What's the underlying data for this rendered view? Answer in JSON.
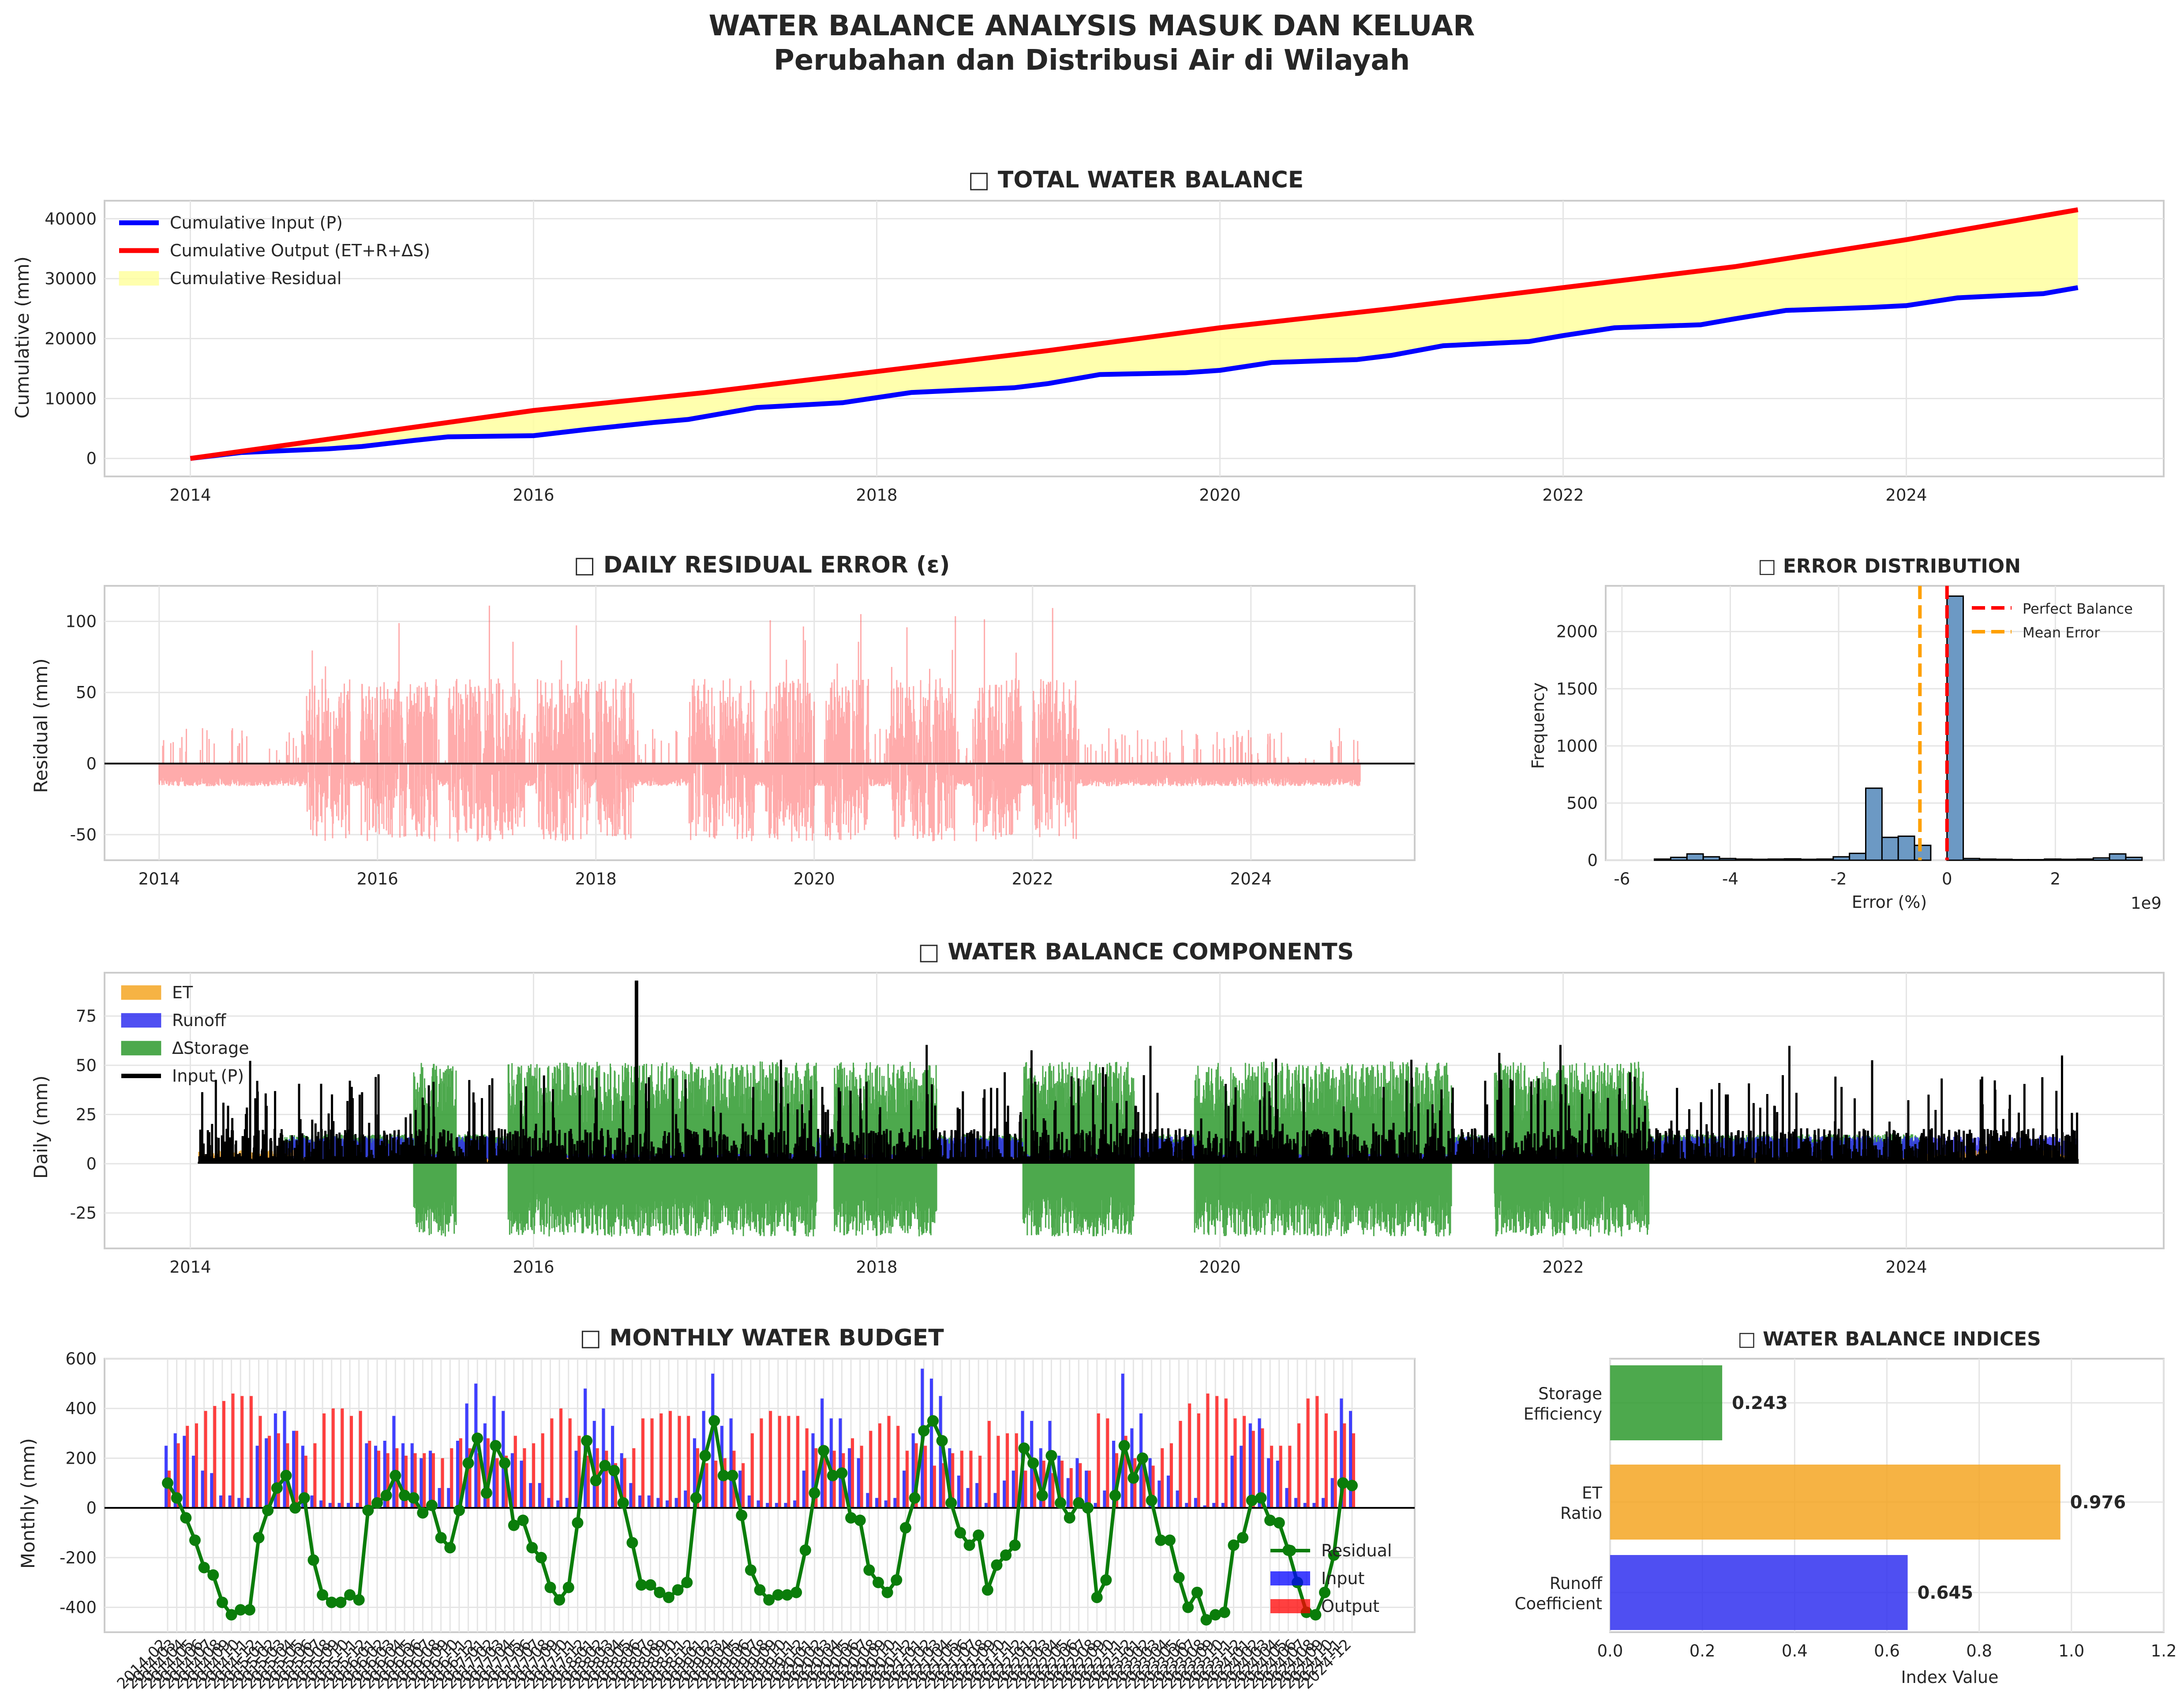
{
  "figure": {
    "title_line1": "WATER BALANCE ANALYSIS MASUK DAN KELUAR",
    "title_line2": "Perubahan dan Distribusi Air di Wilayah"
  },
  "colors": {
    "input": "#0000ff",
    "output": "#ff0000",
    "residual_fill": "#ffffa0",
    "residual_bar": "#ff6666",
    "et": "#f5a623",
    "runoff": "#3030f0",
    "storage": "#2e9a2e",
    "hist": "#6c99c4",
    "mean_error": "#ffa000",
    "monthly_residual": "#0a7d0a"
  },
  "chart_data": [
    {
      "id": "total",
      "type": "line",
      "title": "□ TOTAL WATER BALANCE",
      "xlabel": "",
      "ylabel": "Cumulative (mm)",
      "xlim": [
        2013.5,
        2025.5
      ],
      "ylim": [
        -3000,
        43000
      ],
      "xticks": [
        2014,
        2016,
        2018,
        2020,
        2022,
        2024
      ],
      "yticks": [
        0,
        10000,
        20000,
        30000,
        40000
      ],
      "legend_position": "top-left",
      "grid": true,
      "series": [
        {
          "name": "Cumulative Input (P)",
          "x": [
            2014.0,
            2014.3,
            2014.8,
            2015.0,
            2015.3,
            2015.5,
            2016.0,
            2016.3,
            2016.7,
            2016.9,
            2017.3,
            2017.8,
            2018.2,
            2018.8,
            2019.0,
            2019.3,
            2019.8,
            2020.0,
            2020.3,
            2020.8,
            2021.0,
            2021.3,
            2021.8,
            2022.0,
            2022.3,
            2022.8,
            2023.0,
            2023.3,
            2023.8,
            2024.0,
            2024.3,
            2024.8,
            2025.0
          ],
          "y": [
            0,
            1000,
            1600,
            2000,
            3000,
            3600,
            3800,
            4800,
            6000,
            6500,
            8500,
            9300,
            11000,
            11800,
            12500,
            14000,
            14300,
            14700,
            16000,
            16500,
            17200,
            18800,
            19500,
            20500,
            21800,
            22300,
            23300,
            24700,
            25200,
            25500,
            26800,
            27500,
            28500
          ]
        },
        {
          "name": "Cumulative Output (ET+R+ΔS)",
          "x": [
            2014.0,
            2015.0,
            2016.0,
            2017.0,
            2018.0,
            2019.0,
            2020.0,
            2021.0,
            2022.0,
            2023.0,
            2024.0,
            2025.0
          ],
          "y": [
            0,
            4000,
            8000,
            11000,
            14500,
            18000,
            21800,
            25000,
            28500,
            32000,
            36500,
            41500
          ]
        }
      ],
      "fill_name": "Cumulative Residual"
    },
    {
      "id": "daily_residual",
      "type": "bar",
      "title": "□ DAILY RESIDUAL ERROR (ε)",
      "xlabel": "",
      "ylabel": "Residual (mm)",
      "xlim": [
        2013.5,
        2025.5
      ],
      "ylim": [
        -68,
        125
      ],
      "xticks": [
        2014,
        2016,
        2018,
        2020,
        2022,
        2024
      ],
      "yticks": [
        -50,
        0,
        50,
        100
      ],
      "grid": true,
      "wet_periods": [
        [
          2015.35,
          2015.75
        ],
        [
          2015.85,
          2016.55
        ],
        [
          2016.65,
          2017.35
        ],
        [
          2017.45,
          2017.95
        ],
        [
          2018.0,
          2018.35
        ],
        [
          2018.85,
          2019.45
        ],
        [
          2019.55,
          2020.0
        ],
        [
          2020.1,
          2020.5
        ],
        [
          2020.7,
          2021.3
        ],
        [
          2021.45,
          2021.9
        ],
        [
          2022.0,
          2022.4
        ]
      ],
      "dry_level": -12,
      "peak_residual": 117
    },
    {
      "id": "error_distribution",
      "type": "bar",
      "title": "□ ERROR DISTRIBUTION",
      "xlabel": "Error (%)",
      "ylabel": "Frequency",
      "x_multiplier_label": "1e9",
      "xlim": [
        -6.3,
        4.0
      ],
      "ylim": [
        0,
        2400
      ],
      "xticks": [
        -6,
        -4,
        -2,
        0,
        2
      ],
      "yticks": [
        0,
        500,
        1000,
        1500,
        2000
      ],
      "legend_position": "top-right",
      "grid": true,
      "bin_width": 0.3,
      "bins": [
        [
          -5.4,
          10
        ],
        [
          -5.1,
          25
        ],
        [
          -4.8,
          55
        ],
        [
          -4.5,
          30
        ],
        [
          -4.2,
          15
        ],
        [
          -3.9,
          10
        ],
        [
          -3.6,
          8
        ],
        [
          -3.3,
          10
        ],
        [
          -3.0,
          12
        ],
        [
          -2.7,
          8
        ],
        [
          -2.4,
          10
        ],
        [
          -2.1,
          30
        ],
        [
          -1.8,
          60
        ],
        [
          -1.5,
          630
        ],
        [
          -1.2,
          200
        ],
        [
          -0.9,
          210
        ],
        [
          -0.6,
          130
        ],
        [
          -0.3,
          0
        ],
        [
          0.0,
          2310
        ],
        [
          0.3,
          15
        ],
        [
          0.6,
          10
        ],
        [
          0.9,
          8
        ],
        [
          1.2,
          5
        ],
        [
          1.5,
          5
        ],
        [
          1.8,
          10
        ],
        [
          2.1,
          8
        ],
        [
          2.4,
          10
        ],
        [
          2.7,
          20
        ],
        [
          3.0,
          55
        ],
        [
          3.3,
          25
        ]
      ],
      "lines": [
        {
          "name": "Perfect Balance",
          "x": 0,
          "color": "#ff0000"
        },
        {
          "name": "Mean Error",
          "x": -0.5,
          "color": "#ffa000"
        }
      ]
    },
    {
      "id": "components",
      "type": "area",
      "title": "□ WATER BALANCE COMPONENTS",
      "xlabel": "",
      "ylabel": "Daily (mm)",
      "xlim": [
        2013.5,
        2025.5
      ],
      "ylim": [
        -43,
        97
      ],
      "xticks": [
        2014,
        2016,
        2018,
        2020,
        2022,
        2024
      ],
      "yticks": [
        -25,
        0,
        25,
        50,
        75
      ],
      "legend_position": "top-left",
      "grid": true,
      "series_names": [
        "ET",
        "Runoff",
        "ΔStorage",
        "Input (P)"
      ],
      "storage_periods": [
        [
          2015.3,
          2015.55
        ],
        [
          2015.85,
          2016.75
        ],
        [
          2016.75,
          2017.65
        ],
        [
          2017.75,
          2018.35
        ],
        [
          2018.85,
          2019.5
        ],
        [
          2019.85,
          2020.5
        ],
        [
          2020.5,
          2021.35
        ],
        [
          2021.6,
          2022.5
        ]
      ],
      "input_peak": {
        "x": 2016.6,
        "y": 93
      }
    },
    {
      "id": "monthly_budget",
      "type": "bar",
      "title": "□ MONTHLY WATER BUDGET",
      "xlabel": "",
      "ylabel": "Monthly (mm)",
      "ylim": [
        -500,
        600
      ],
      "yticks": [
        -400,
        -200,
        0,
        200,
        400,
        600
      ],
      "legend_position": "bottom-right",
      "grid": true,
      "series_names": [
        "Residual",
        "Input",
        "Output"
      ],
      "month_start": "2014-02",
      "month_end": "2024-12",
      "months": 131,
      "residual": [
        100,
        40,
        -40,
        -130,
        -240,
        -270,
        -380,
        -430,
        -410,
        -410,
        -120,
        -10,
        80,
        130,
        0,
        40,
        -210,
        -350,
        -380,
        -380,
        -350,
        -370,
        -10,
        20,
        50,
        130,
        50,
        40,
        -20,
        10,
        -120,
        -160,
        -10,
        180,
        280,
        60,
        250,
        180,
        -70,
        -50,
        -160,
        -200,
        -320,
        -370,
        -320,
        -60,
        270,
        110,
        170,
        150,
        20,
        -140,
        -310,
        -310,
        -340,
        -360,
        -330,
        -300,
        40,
        210,
        350,
        130,
        130,
        -30,
        -250,
        -330,
        -370,
        -350,
        -350,
        -340,
        -170,
        60,
        230,
        130,
        140,
        -40,
        -50,
        -250,
        -300,
        -340,
        -290,
        -80,
        40,
        310,
        350,
        270,
        20,
        -100,
        -150,
        -110,
        -330,
        -230,
        -190,
        -150,
        240,
        180,
        50,
        210,
        20,
        -40,
        20,
        0,
        -360,
        -290,
        50,
        250,
        120,
        200,
        30,
        -130,
        -130,
        -280,
        -400,
        -340,
        -450,
        -430,
        -420,
        -150,
        -120,
        30,
        40,
        -50,
        -60,
        -170,
        -300,
        -420,
        -430,
        -340,
        -190,
        100,
        90
      ],
      "input": [
        250,
        300,
        290,
        210,
        150,
        140,
        50,
        50,
        40,
        40,
        250,
        280,
        380,
        390,
        310,
        250,
        50,
        30,
        20,
        20,
        20,
        20,
        260,
        250,
        270,
        370,
        260,
        260,
        200,
        230,
        80,
        80,
        270,
        420,
        500,
        340,
        450,
        390,
        220,
        190,
        100,
        100,
        40,
        30,
        40,
        230,
        480,
        350,
        400,
        330,
        220,
        100,
        50,
        50,
        40,
        30,
        40,
        70,
        280,
        390,
        540,
        330,
        360,
        150,
        50,
        30,
        20,
        20,
        20,
        30,
        150,
        300,
        440,
        360,
        360,
        240,
        200,
        60,
        40,
        30,
        40,
        150,
        300,
        560,
        520,
        450,
        240,
        130,
        80,
        100,
        20,
        60,
        110,
        150,
        390,
        350,
        240,
        350,
        210,
        120,
        200,
        150,
        20,
        70,
        270,
        540,
        320,
        380,
        200,
        110,
        130,
        70,
        20,
        40,
        10,
        20,
        20,
        210,
        250,
        340,
        360,
        200,
        190,
        80,
        40,
        20,
        20,
        40,
        120,
        440,
        390
      ],
      "output": [
        150,
        260,
        330,
        340,
        390,
        410,
        430,
        460,
        450,
        450,
        370,
        290,
        300,
        260,
        310,
        210,
        260,
        380,
        400,
        400,
        370,
        390,
        270,
        230,
        220,
        240,
        210,
        220,
        220,
        220,
        200,
        240,
        280,
        240,
        220,
        280,
        200,
        210,
        290,
        240,
        260,
        300,
        360,
        400,
        360,
        290,
        210,
        240,
        230,
        180,
        200,
        240,
        360,
        360,
        380,
        390,
        370,
        370,
        240,
        180,
        190,
        200,
        230,
        180,
        300,
        360,
        390,
        370,
        370,
        370,
        320,
        240,
        210,
        230,
        220,
        280,
        250,
        310,
        340,
        370,
        330,
        230,
        260,
        250,
        170,
        180,
        220,
        230,
        230,
        210,
        350,
        290,
        300,
        300,
        150,
        170,
        190,
        140,
        190,
        160,
        180,
        150,
        380,
        360,
        220,
        290,
        200,
        180,
        170,
        240,
        260,
        350,
        420,
        380,
        460,
        450,
        440,
        360,
        370,
        310,
        320,
        250,
        250,
        250,
        340,
        440,
        450,
        380,
        310,
        340,
        300
      ],
      "tick_labels_visible": [
        "2014-02",
        "2024-12"
      ]
    },
    {
      "id": "indices",
      "type": "bar",
      "orientation": "horizontal",
      "title": "□ WATER BALANCE INDICES",
      "xlabel": "Index Value",
      "xlim": [
        0,
        1.2
      ],
      "xticks": [
        "0.0",
        "0.2",
        "0.4",
        "0.6",
        "0.8",
        "1.0",
        "1.2"
      ],
      "grid": true,
      "categories": [
        {
          "label_line1": "Storage",
          "label_line2": "Efficiency",
          "value": 0.243,
          "value_label": "0.243",
          "color": "#2e9a2e"
        },
        {
          "label_line1": "ET",
          "label_line2": "Ratio",
          "value": 0.976,
          "value_label": "0.976",
          "color": "#f5a623"
        },
        {
          "label_line1": "Runoff",
          "label_line2": "Coefficient",
          "value": 0.645,
          "value_label": "0.645",
          "color": "#3030f0"
        }
      ]
    }
  ]
}
